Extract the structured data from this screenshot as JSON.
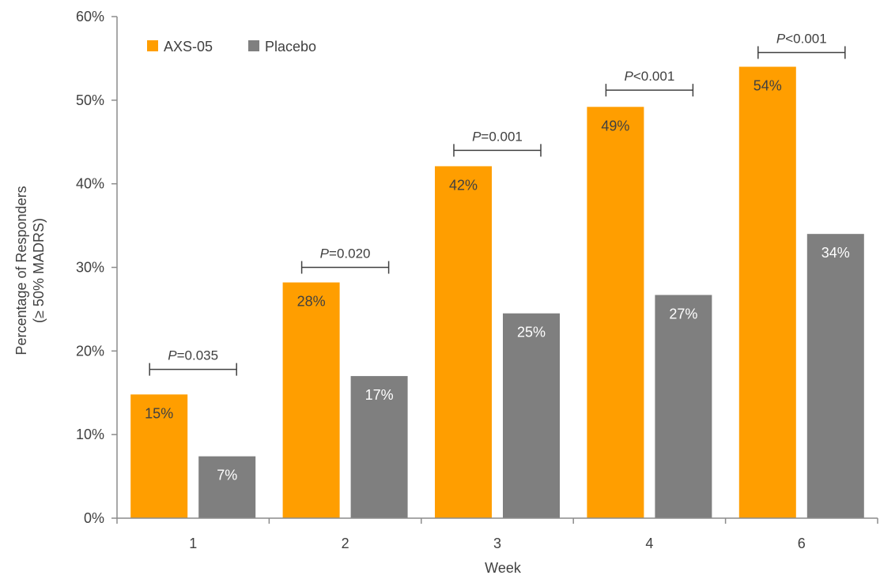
{
  "chart_data": {
    "type": "bar",
    "categories": [
      "1",
      "2",
      "3",
      "4",
      "6"
    ],
    "series": [
      {
        "name": "AXS-05",
        "color": "#ff9e00",
        "values": [
          14.8,
          28.2,
          42.1,
          49.2,
          54.0
        ],
        "labels": [
          "15%",
          "28%",
          "42%",
          "49%",
          "54%"
        ],
        "label_color": "#404040"
      },
      {
        "name": "Placebo",
        "color": "#7f7f7f",
        "values": [
          7.4,
          17.0,
          24.5,
          26.7,
          34.0
        ],
        "labels": [
          "7%",
          "17%",
          "25%",
          "27%",
          "34%"
        ],
        "label_color": "#ffffff"
      }
    ],
    "p_values": [
      {
        "italic": "P",
        "rest": "=0.035",
        "y": 17.8
      },
      {
        "italic": "P",
        "rest": "=0.020",
        "y": 30.0
      },
      {
        "italic": "P",
        "rest": "=0.001",
        "y": 44.0
      },
      {
        "italic": "P",
        "rest": "<0.001",
        "y": 51.2
      },
      {
        "italic": "P",
        "rest": "<0.001",
        "y": 55.7
      }
    ],
    "xlabel": "Week",
    "ylabel_lines": [
      "Percentage of Responders",
      "(≥ 50% MADRS)"
    ],
    "ylim": [
      0,
      60
    ],
    "yticks": [
      0,
      10,
      20,
      30,
      40,
      50,
      60
    ],
    "ytick_labels": [
      "0%",
      "10%",
      "20%",
      "30%",
      "40%",
      "50%",
      "60%"
    ],
    "grid": false,
    "legend_position": "top-left",
    "axis_color": "#8c8c8c"
  }
}
